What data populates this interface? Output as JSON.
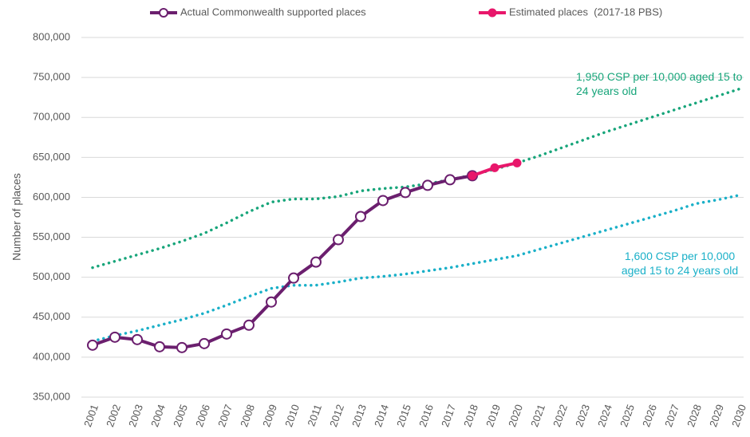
{
  "chart_data": {
    "type": "line",
    "y_label": "Number of places",
    "categories": [
      "2001",
      "2002",
      "2003",
      "2004",
      "2005",
      "2006",
      "2007",
      "2008",
      "2009",
      "2010",
      "2011",
      "2012",
      "2013",
      "2014",
      "2015",
      "2016",
      "2017",
      "2018",
      "2019",
      "2020",
      "2021",
      "2022",
      "2023",
      "2024",
      "2025",
      "2026",
      "2027",
      "2028",
      "2029",
      "2030"
    ],
    "ylim": [
      350000,
      800000
    ],
    "yticks": [
      {
        "value": 350000,
        "label": "350,000"
      },
      {
        "value": 400000,
        "label": "400,000"
      },
      {
        "value": 450000,
        "label": "450,000"
      },
      {
        "value": 500000,
        "label": "500,000"
      },
      {
        "value": 550000,
        "label": "550,000"
      },
      {
        "value": 600000,
        "label": "600,000"
      },
      {
        "value": 650000,
        "label": "650,000"
      },
      {
        "value": 700000,
        "label": "700,000"
      },
      {
        "value": 750000,
        "label": "750,000"
      },
      {
        "value": 800000,
        "label": "800,000"
      }
    ],
    "grid": true,
    "series": [
      {
        "name": "1,950 CSP per 10,000 aged 15 to 24 years old",
        "color": "#17a57a",
        "line_style": "dotted",
        "in_legend": false,
        "values": [
          512000,
          520000,
          528000,
          536000,
          545000,
          555000,
          568000,
          582000,
          594000,
          598000,
          598000,
          601000,
          608000,
          611000,
          613000,
          617000,
          622000,
          628000,
          635000,
          643000,
          652000,
          662000,
          672000,
          682000,
          691000,
          700000,
          709000,
          718000,
          727000,
          736000
        ]
      },
      {
        "name": "1,600 CSP per 10,000 aged 15 to 24 years old",
        "color": "#1ab0c8",
        "line_style": "dotted",
        "in_legend": false,
        "values": [
          420000,
          427000,
          433000,
          440000,
          447000,
          455000,
          465000,
          476000,
          486000,
          490000,
          490000,
          494000,
          499000,
          501000,
          504000,
          508000,
          512000,
          517000,
          522000,
          527000,
          535000,
          543000,
          551000,
          559000,
          567000,
          575000,
          583000,
          592000,
          597000,
          603000
        ]
      },
      {
        "name": "Actual Commonwealth supported places",
        "color": "#6b1f6e",
        "line_style": "solid",
        "marker": "open",
        "in_legend": true,
        "values": [
          415000,
          425000,
          422000,
          413000,
          412000,
          417000,
          429000,
          440000,
          469000,
          499000,
          519000,
          547000,
          576000,
          596000,
          606000,
          615000,
          622000,
          627000,
          null,
          null,
          null,
          null,
          null,
          null,
          null,
          null,
          null,
          null,
          null,
          null
        ]
      },
      {
        "name": "Estimated places  (2017-18 PBS)",
        "color": "#e8176b",
        "line_style": "solid",
        "marker": "filled",
        "in_legend": true,
        "values": [
          null,
          null,
          null,
          null,
          null,
          null,
          null,
          null,
          null,
          null,
          null,
          null,
          null,
          null,
          null,
          null,
          null,
          627000,
          637000,
          643000,
          null,
          null,
          null,
          null,
          null,
          null,
          null,
          null,
          null,
          null
        ]
      }
    ]
  }
}
